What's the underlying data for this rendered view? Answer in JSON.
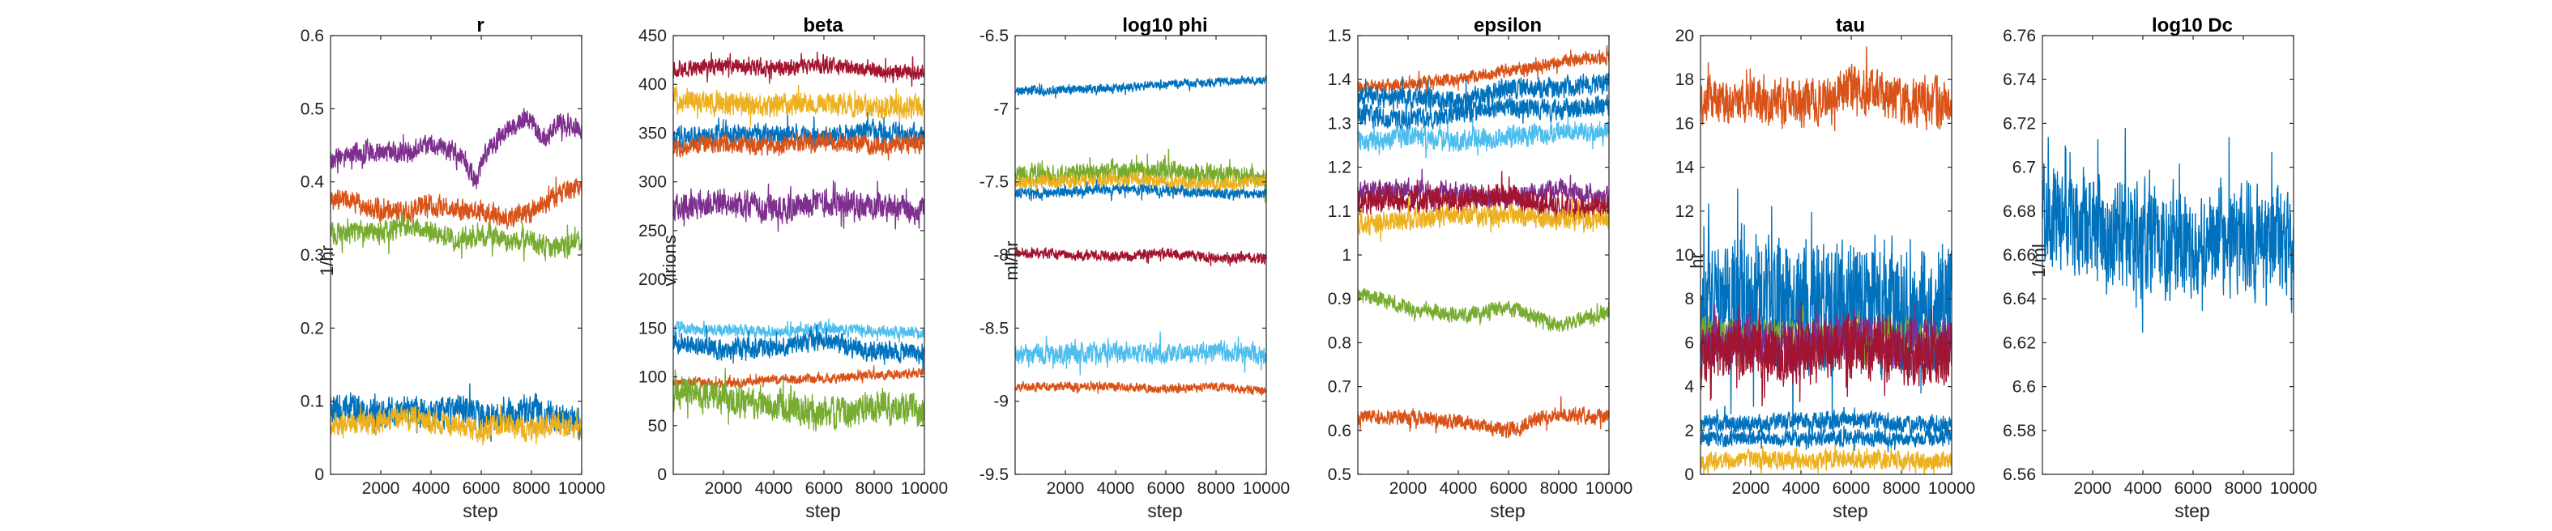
{
  "figure": {
    "xlabel": "step"
  },
  "colors": {
    "blue": "#0072BD",
    "orange": "#D95319",
    "yellow": "#EDB120",
    "purple": "#7E2F8E",
    "green": "#77AC30",
    "lightblue": "#4DBEEE",
    "darkred": "#A2142F"
  },
  "chart_data": [
    {
      "type": "line",
      "title": "r",
      "xlabel": "step",
      "ylabel": "1/hr",
      "xlim": [
        0,
        10000
      ],
      "ylim": [
        0,
        0.6
      ],
      "xticks": [
        2000,
        4000,
        6000,
        8000,
        10000
      ],
      "xticklabels": [
        "2000",
        "4000",
        "6000",
        "8000",
        "10000"
      ],
      "yticks": [
        0,
        0.1,
        0.2,
        0.3,
        0.4,
        0.5,
        0.6
      ],
      "yticklabels": [
        "0",
        "0.1",
        "0.2",
        "0.3",
        "0.4",
        "0.5",
        "0.6"
      ],
      "grid": false,
      "series": [
        {
          "color": "#7E2F8E",
          "x": [
            0,
            1000,
            2000,
            3000,
            4000,
            5000,
            5800,
            6200,
            7000,
            7800,
            8500,
            9200,
            10000
          ],
          "y": [
            0.43,
            0.44,
            0.44,
            0.44,
            0.45,
            0.44,
            0.4,
            0.44,
            0.47,
            0.49,
            0.46,
            0.48,
            0.47
          ],
          "noise": 0.012
        },
        {
          "color": "#D95319",
          "x": [
            0,
            1000,
            2000,
            3000,
            4000,
            5000,
            6000,
            7000,
            8000,
            9000,
            10000
          ],
          "y": [
            0.38,
            0.37,
            0.36,
            0.36,
            0.37,
            0.36,
            0.36,
            0.35,
            0.36,
            0.38,
            0.4
          ],
          "noise": 0.012
        },
        {
          "color": "#77AC30",
          "x": [
            0,
            1000,
            2000,
            3000,
            4000,
            5000,
            6000,
            7000,
            8000,
            9000,
            10000
          ],
          "y": [
            0.33,
            0.33,
            0.33,
            0.34,
            0.33,
            0.32,
            0.33,
            0.32,
            0.32,
            0.31,
            0.32
          ],
          "noise": 0.013
        },
        {
          "color": "#0072BD",
          "x": [
            0,
            1000,
            2000,
            3000,
            4000,
            5000,
            6000,
            7000,
            8000,
            9000,
            10000
          ],
          "y": [
            0.09,
            0.09,
            0.08,
            0.09,
            0.08,
            0.09,
            0.08,
            0.08,
            0.09,
            0.08,
            0.07
          ],
          "noise": 0.018
        },
        {
          "color": "#EDB120",
          "x": [
            0,
            1000,
            2000,
            3000,
            4000,
            5000,
            6000,
            7000,
            8000,
            9000,
            10000
          ],
          "y": [
            0.07,
            0.07,
            0.07,
            0.08,
            0.07,
            0.07,
            0.06,
            0.07,
            0.06,
            0.07,
            0.06
          ],
          "noise": 0.014
        }
      ]
    },
    {
      "type": "line",
      "title": "beta",
      "xlabel": "step",
      "ylabel": "virions",
      "xlim": [
        0,
        10000
      ],
      "ylim": [
        0,
        450
      ],
      "xticks": [
        2000,
        4000,
        6000,
        8000,
        10000
      ],
      "xticklabels": [
        "2000",
        "4000",
        "6000",
        "8000",
        "10000"
      ],
      "yticks": [
        0,
        50,
        100,
        150,
        200,
        250,
        300,
        350,
        400,
        450
      ],
      "yticklabels": [
        "0",
        "50",
        "100",
        "150",
        "200",
        "250",
        "300",
        "350",
        "400",
        "450"
      ],
      "grid": false,
      "series": [
        {
          "color": "#A2142F",
          "x": [
            0,
            2000,
            4000,
            6000,
            8000,
            10000
          ],
          "y": [
            415,
            418,
            416,
            420,
            414,
            412
          ],
          "noise": 7
        },
        {
          "color": "#EDB120",
          "x": [
            0,
            2000,
            4000,
            6000,
            8000,
            10000
          ],
          "y": [
            385,
            380,
            378,
            382,
            376,
            378
          ],
          "noise": 10
        },
        {
          "color": "#0072BD",
          "x": [
            0,
            2000,
            4000,
            6000,
            8000,
            10000
          ],
          "y": [
            345,
            348,
            350,
            346,
            352,
            348
          ],
          "noise": 9
        },
        {
          "color": "#D95319",
          "x": [
            0,
            2000,
            4000,
            6000,
            8000,
            10000
          ],
          "y": [
            335,
            340,
            337,
            342,
            336,
            340
          ],
          "noise": 8
        },
        {
          "color": "#7E2F8E",
          "x": [
            0,
            2000,
            4000,
            6000,
            8000,
            10000
          ],
          "y": [
            275,
            278,
            272,
            280,
            276,
            270
          ],
          "noise": 12
        },
        {
          "color": "#4DBEEE",
          "x": [
            0,
            2000,
            4000,
            6000,
            8000,
            10000
          ],
          "y": [
            150,
            148,
            146,
            150,
            147,
            145
          ],
          "noise": 5
        },
        {
          "color": "#0072BD",
          "x": [
            0,
            2000,
            4000,
            6000,
            8000,
            10000
          ],
          "y": [
            135,
            128,
            130,
            138,
            126,
            125
          ],
          "noise": 9
        },
        {
          "color": "#D95319",
          "x": [
            0,
            2000,
            4000,
            6000,
            8000,
            10000
          ],
          "y": [
            95,
            93,
            97,
            98,
            102,
            104
          ],
          "noise": 4
        },
        {
          "color": "#77AC30",
          "x": [
            0,
            2000,
            4000,
            6000,
            8000,
            10000
          ],
          "y": [
            85,
            78,
            72,
            60,
            68,
            65
          ],
          "noise": 14
        }
      ]
    },
    {
      "type": "line",
      "title": "log10 phi",
      "xlabel": "step",
      "ylabel": "ml/hr",
      "xlim": [
        0,
        10000
      ],
      "ylim": [
        -9.5,
        -6.5
      ],
      "xticks": [
        2000,
        4000,
        6000,
        8000,
        10000
      ],
      "xticklabels": [
        "2000",
        "4000",
        "6000",
        "8000",
        "10000"
      ],
      "yticks": [
        -9.5,
        -9,
        -8.5,
        -8,
        -7.5,
        -7,
        -6.5
      ],
      "yticklabels": [
        "-9.5",
        "-9",
        "-8.5",
        "-8",
        "-7.5",
        "-7",
        "-6.5"
      ],
      "grid": false,
      "series": [
        {
          "color": "#0072BD",
          "x": [
            0,
            2000,
            4000,
            6000,
            8000,
            10000
          ],
          "y": [
            -6.88,
            -6.87,
            -6.86,
            -6.83,
            -6.82,
            -6.8
          ],
          "noise": 0.025
        },
        {
          "color": "#77AC30",
          "x": [
            0,
            2000,
            4000,
            6000,
            8000,
            10000
          ],
          "y": [
            -7.45,
            -7.45,
            -7.43,
            -7.42,
            -7.45,
            -7.48
          ],
          "noise": 0.06
        },
        {
          "color": "#EDB120",
          "x": [
            0,
            2000,
            4000,
            6000,
            8000,
            10000
          ],
          "y": [
            -7.5,
            -7.5,
            -7.48,
            -7.5,
            -7.52,
            -7.5
          ],
          "noise": 0.04
        },
        {
          "color": "#0072BD",
          "x": [
            0,
            2000,
            4000,
            6000,
            8000,
            10000
          ],
          "y": [
            -7.58,
            -7.57,
            -7.55,
            -7.56,
            -7.58,
            -7.58
          ],
          "noise": 0.03
        },
        {
          "color": "#A2142F",
          "x": [
            0,
            2000,
            4000,
            6000,
            8000,
            10000
          ],
          "y": [
            -7.98,
            -8.0,
            -8.01,
            -7.99,
            -8.02,
            -8.02
          ],
          "noise": 0.03
        },
        {
          "color": "#4DBEEE",
          "x": [
            0,
            2000,
            4000,
            6000,
            8000,
            10000
          ],
          "y": [
            -8.68,
            -8.67,
            -8.66,
            -8.68,
            -8.66,
            -8.67
          ],
          "noise": 0.06
        },
        {
          "color": "#D95319",
          "x": [
            0,
            2000,
            4000,
            6000,
            8000,
            10000
          ],
          "y": [
            -8.9,
            -8.9,
            -8.9,
            -8.92,
            -8.9,
            -8.93
          ],
          "noise": 0.025
        }
      ]
    },
    {
      "type": "line",
      "title": "epsilon",
      "xlabel": "step",
      "ylabel": "",
      "xlim": [
        0,
        10000
      ],
      "ylim": [
        0.5,
        1.5
      ],
      "xticks": [
        2000,
        4000,
        6000,
        8000,
        10000
      ],
      "xticklabels": [
        "2000",
        "4000",
        "6000",
        "8000",
        "10000"
      ],
      "yticks": [
        0.5,
        0.6,
        0.7,
        0.8,
        0.9,
        1,
        1.1,
        1.2,
        1.3,
        1.4,
        1.5
      ],
      "yticklabels": [
        "0.5",
        "0.6",
        "0.7",
        "0.8",
        "0.9",
        "1",
        "1.1",
        "1.2",
        "1.3",
        "1.4",
        "1.5"
      ],
      "grid": false,
      "series": [
        {
          "color": "#D95319",
          "x": [
            0,
            2000,
            4000,
            6000,
            8000,
            10000
          ],
          "y": [
            1.38,
            1.39,
            1.4,
            1.42,
            1.44,
            1.45
          ],
          "noise": 0.012
        },
        {
          "color": "#0072BD",
          "x": [
            0,
            2000,
            4000,
            6000,
            8000,
            10000
          ],
          "y": [
            1.36,
            1.36,
            1.35,
            1.38,
            1.38,
            1.39
          ],
          "noise": 0.02
        },
        {
          "color": "#0072BD",
          "x": [
            0,
            2000,
            4000,
            6000,
            8000,
            10000
          ],
          "y": [
            1.32,
            1.31,
            1.32,
            1.34,
            1.33,
            1.34
          ],
          "noise": 0.02
        },
        {
          "color": "#4DBEEE",
          "x": [
            0,
            2000,
            4000,
            6000,
            8000,
            10000
          ],
          "y": [
            1.26,
            1.27,
            1.26,
            1.27,
            1.28,
            1.28
          ],
          "noise": 0.02
        },
        {
          "color": "#7E2F8E",
          "x": [
            0,
            2000,
            4000,
            6000,
            8000,
            10000
          ],
          "y": [
            1.14,
            1.15,
            1.14,
            1.13,
            1.15,
            1.13
          ],
          "noise": 0.02
        },
        {
          "color": "#A2142F",
          "x": [
            0,
            2000,
            4000,
            6000,
            8000,
            10000
          ],
          "y": [
            1.12,
            1.13,
            1.12,
            1.14,
            1.1,
            1.11
          ],
          "noise": 0.025
        },
        {
          "color": "#EDB120",
          "x": [
            0,
            2000,
            4000,
            6000,
            8000,
            10000
          ],
          "y": [
            1.07,
            1.08,
            1.09,
            1.09,
            1.08,
            1.08
          ],
          "noise": 0.02
        },
        {
          "color": "#77AC30",
          "x": [
            0,
            2000,
            4000,
            6000,
            8000,
            10000
          ],
          "y": [
            0.91,
            0.88,
            0.86,
            0.88,
            0.84,
            0.87
          ],
          "noise": 0.015
        },
        {
          "color": "#D95319",
          "x": [
            0,
            2000,
            4000,
            6000,
            8000,
            10000
          ],
          "y": [
            0.63,
            0.63,
            0.62,
            0.6,
            0.64,
            0.63
          ],
          "noise": 0.015
        }
      ]
    },
    {
      "type": "line",
      "title": "tau",
      "xlabel": "step",
      "ylabel": "hr",
      "xlim": [
        0,
        10000
      ],
      "ylim": [
        0,
        20
      ],
      "xticks": [
        2000,
        4000,
        6000,
        8000,
        10000
      ],
      "xticklabels": [
        "2000",
        "4000",
        "6000",
        "8000",
        "10000"
      ],
      "yticks": [
        0,
        2,
        4,
        6,
        8,
        10,
        12,
        14,
        16,
        18,
        20
      ],
      "yticklabels": [
        "0",
        "2",
        "4",
        "6",
        "8",
        "10",
        "12",
        "14",
        "16",
        "18",
        "20"
      ],
      "grid": false,
      "series": [
        {
          "color": "#D95319",
          "x": [
            0,
            2000,
            4000,
            6000,
            8000,
            10000
          ],
          "y": [
            17,
            17,
            16.8,
            17.6,
            17,
            16.8
          ],
          "noise": 0.9
        },
        {
          "color": "#0072BD",
          "x": [
            0,
            2000,
            4000,
            6000,
            8000,
            10000
          ],
          "y": [
            7.5,
            8,
            7.5,
            8,
            7.5,
            8
          ],
          "noise": 2.6
        },
        {
          "color": "#77AC30",
          "x": [
            0,
            2000,
            4000,
            6000,
            8000,
            10000
          ],
          "y": [
            6.5,
            6.4,
            6.3,
            6.2,
            6.2,
            6
          ],
          "noise": 0.6
        },
        {
          "color": "#7E2F8E",
          "x": [
            0,
            2000,
            4000,
            6000,
            8000,
            10000
          ],
          "y": [
            6,
            6.2,
            5.8,
            6.3,
            5.9,
            6.1
          ],
          "noise": 0.9
        },
        {
          "color": "#A2142F",
          "x": [
            0,
            2000,
            4000,
            6000,
            8000,
            10000
          ],
          "y": [
            5.5,
            5.8,
            5.5,
            6,
            5.6,
            5.4
          ],
          "noise": 1.2
        },
        {
          "color": "#0072BD",
          "x": [
            0,
            2000,
            4000,
            6000,
            8000,
            10000
          ],
          "y": [
            2.4,
            2.3,
            2.4,
            2.5,
            2.3,
            2.2
          ],
          "noise": 0.35
        },
        {
          "color": "#0072BD",
          "x": [
            0,
            2000,
            4000,
            6000,
            8000,
            10000
          ],
          "y": [
            1.6,
            1.7,
            1.6,
            1.7,
            1.6,
            1.7
          ],
          "noise": 0.3
        },
        {
          "color": "#EDB120",
          "x": [
            0,
            2000,
            4000,
            6000,
            8000,
            10000
          ],
          "y": [
            0.6,
            0.7,
            0.6,
            0.7,
            0.6,
            0.6
          ],
          "noise": 0.35
        }
      ]
    },
    {
      "type": "line",
      "title": "log10 Dc",
      "xlabel": "step",
      "ylabel": "1/ml",
      "xlim": [
        0,
        10000
      ],
      "ylim": [
        6.56,
        6.76
      ],
      "xticks": [
        2000,
        4000,
        6000,
        8000,
        10000
      ],
      "xticklabels": [
        "2000",
        "4000",
        "6000",
        "8000",
        "10000"
      ],
      "yticks": [
        6.56,
        6.58,
        6.6,
        6.62,
        6.64,
        6.66,
        6.68,
        6.7,
        6.72,
        6.74,
        6.76
      ],
      "yticklabels": [
        "6.56",
        "6.58",
        "6.6",
        "6.62",
        "6.64",
        "6.66",
        "6.68",
        "6.7",
        "6.72",
        "6.74",
        "6.76"
      ],
      "grid": false,
      "series": [
        {
          "color": "#0072BD",
          "x": [
            0,
            2000,
            4000,
            6000,
            8000,
            10000
          ],
          "y": [
            6.68,
            6.67,
            6.668,
            6.665,
            6.67,
            6.665
          ],
          "noise": 0.022
        }
      ]
    }
  ]
}
